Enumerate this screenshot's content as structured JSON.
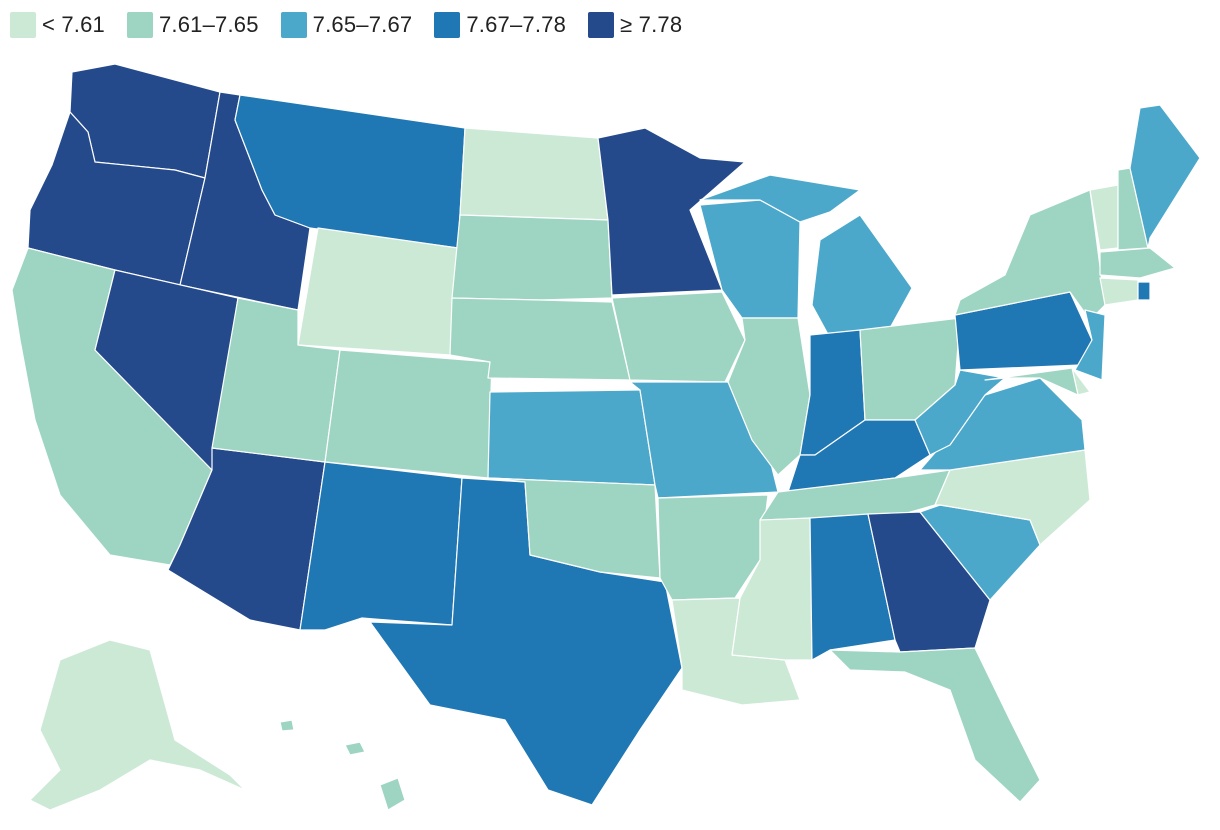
{
  "legend": {
    "items": [
      {
        "label": "< 7.61",
        "color": "#cce9d6"
      },
      {
        "label": "7.61–7.65",
        "color": "#9dd5c2"
      },
      {
        "label": "7.65–7.67",
        "color": "#4ba8cb"
      },
      {
        "label": "7.67–7.78",
        "color": "#1f77b4"
      },
      {
        "label": "≥ 7.78",
        "color": "#244a8c"
      }
    ]
  },
  "map": {
    "states": [
      {
        "id": "WA",
        "class": 4
      },
      {
        "id": "OR",
        "class": 4
      },
      {
        "id": "CA",
        "class": 1
      },
      {
        "id": "ID",
        "class": 4
      },
      {
        "id": "NV",
        "class": 4
      },
      {
        "id": "AZ",
        "class": 4
      },
      {
        "id": "MT",
        "class": 3
      },
      {
        "id": "WY",
        "class": 0
      },
      {
        "id": "UT",
        "class": 1
      },
      {
        "id": "CO",
        "class": 1
      },
      {
        "id": "NM",
        "class": 3
      },
      {
        "id": "TX",
        "class": 3
      },
      {
        "id": "ND",
        "class": 0
      },
      {
        "id": "SD",
        "class": 1
      },
      {
        "id": "NE",
        "class": 1
      },
      {
        "id": "KS",
        "class": 2
      },
      {
        "id": "OK",
        "class": 1
      },
      {
        "id": "MN",
        "class": 4
      },
      {
        "id": "IA",
        "class": 1
      },
      {
        "id": "MO",
        "class": 2
      },
      {
        "id": "AR",
        "class": 1
      },
      {
        "id": "LA",
        "class": 0
      },
      {
        "id": "WI",
        "class": 2
      },
      {
        "id": "IL",
        "class": 1
      },
      {
        "id": "MI",
        "class": 2
      },
      {
        "id": "IN",
        "class": 3
      },
      {
        "id": "OH",
        "class": 1
      },
      {
        "id": "KY",
        "class": 3
      },
      {
        "id": "TN",
        "class": 1
      },
      {
        "id": "MS",
        "class": 0
      },
      {
        "id": "AL",
        "class": 3
      },
      {
        "id": "GA",
        "class": 4
      },
      {
        "id": "FL",
        "class": 1
      },
      {
        "id": "SC",
        "class": 2
      },
      {
        "id": "NC",
        "class": 0
      },
      {
        "id": "VA",
        "class": 2
      },
      {
        "id": "WV",
        "class": 2
      },
      {
        "id": "PA",
        "class": 3
      },
      {
        "id": "NY",
        "class": 1
      },
      {
        "id": "VT",
        "class": 0
      },
      {
        "id": "NH",
        "class": 1
      },
      {
        "id": "ME",
        "class": 2
      },
      {
        "id": "MA",
        "class": 1
      },
      {
        "id": "CT",
        "class": 0
      },
      {
        "id": "RI",
        "class": 3
      },
      {
        "id": "NJ",
        "class": 2
      },
      {
        "id": "DE",
        "class": 0
      },
      {
        "id": "MD",
        "class": 1
      },
      {
        "id": "AK",
        "class": 0
      },
      {
        "id": "HI",
        "class": 1
      }
    ]
  }
}
